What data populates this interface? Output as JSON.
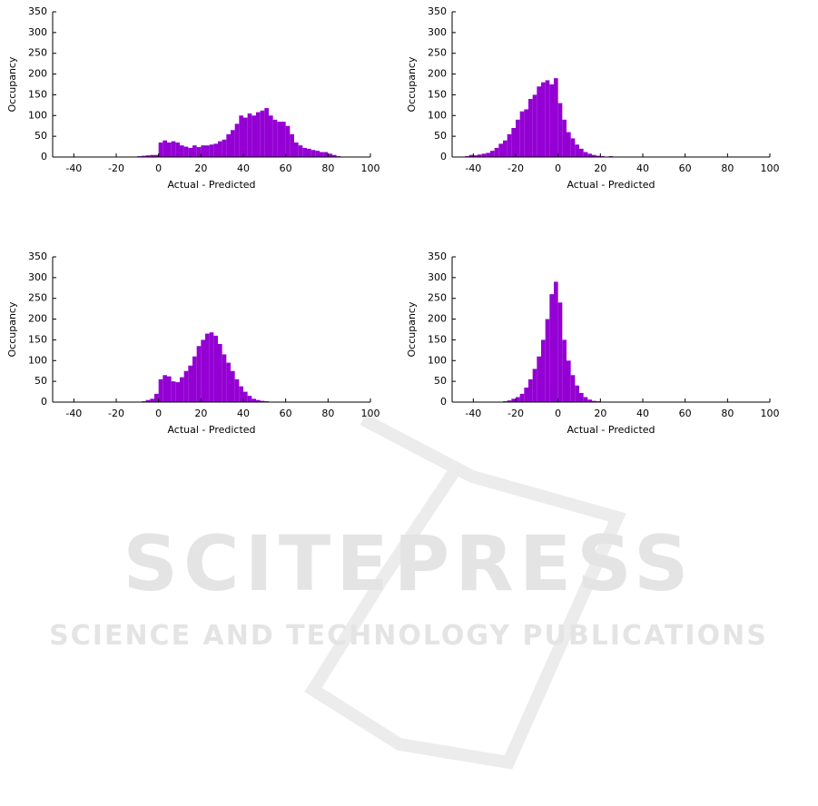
{
  "chart_data": [
    {
      "type": "histogram",
      "xlabel": "Actual - Predicted",
      "ylabel": "Occupancy",
      "color": "#9400d3",
      "xlim": [
        -50,
        100
      ],
      "xticks": [
        -40,
        -20,
        0,
        20,
        40,
        60,
        80,
        100
      ],
      "ylim": [
        0,
        350
      ],
      "yticks": [
        0,
        50,
        100,
        150,
        200,
        250,
        300,
        350
      ],
      "bins": [
        -10,
        -8,
        -6,
        -4,
        -2,
        0,
        2,
        4,
        6,
        8,
        10,
        12,
        14,
        16,
        18,
        20,
        22,
        24,
        26,
        28,
        30,
        32,
        34,
        36,
        38,
        40,
        42,
        44,
        46,
        48,
        50,
        52,
        54,
        56,
        58,
        60,
        62,
        64,
        66,
        68,
        70,
        72,
        74,
        76,
        78,
        80,
        82,
        84,
        86
      ],
      "values": [
        2,
        3,
        4,
        5,
        5,
        35,
        40,
        35,
        38,
        35,
        28,
        25,
        22,
        28,
        24,
        28,
        28,
        30,
        32,
        38,
        42,
        55,
        65,
        80,
        100,
        95,
        105,
        100,
        108,
        112,
        118,
        100,
        90,
        85,
        85,
        75,
        55,
        35,
        28,
        22,
        20,
        17,
        15,
        12,
        12,
        8,
        5,
        2
      ]
    },
    {
      "type": "histogram",
      "xlabel": "Actual - Predicted",
      "ylabel": "Occupancy",
      "color": "#9400d3",
      "xlim": [
        -50,
        100
      ],
      "xticks": [
        -40,
        -20,
        0,
        20,
        40,
        60,
        80,
        100
      ],
      "ylim": [
        0,
        350
      ],
      "yticks": [
        0,
        50,
        100,
        150,
        200,
        250,
        300,
        350
      ],
      "bins": [
        -44,
        -42,
        -40,
        -38,
        -36,
        -34,
        -32,
        -30,
        -28,
        -26,
        -24,
        -22,
        -20,
        -18,
        -16,
        -14,
        -12,
        -10,
        -8,
        -6,
        -4,
        -2,
        0,
        2,
        4,
        6,
        8,
        10,
        12,
        14,
        16,
        18,
        20,
        22,
        24,
        26
      ],
      "values": [
        2,
        5,
        4,
        6,
        8,
        10,
        15,
        22,
        32,
        40,
        55,
        70,
        90,
        110,
        115,
        140,
        150,
        170,
        180,
        185,
        175,
        190,
        130,
        90,
        60,
        45,
        30,
        20,
        12,
        8,
        5,
        3,
        2,
        1,
        2
      ]
    },
    {
      "type": "histogram",
      "xlabel": "Actual - Predicted",
      "ylabel": "Occupancy",
      "color": "#9400d3",
      "xlim": [
        -50,
        100
      ],
      "xticks": [
        -40,
        -20,
        0,
        20,
        40,
        60,
        80,
        100
      ],
      "ylim": [
        0,
        350
      ],
      "yticks": [
        0,
        50,
        100,
        150,
        200,
        250,
        300,
        350
      ],
      "bins": [
        -10,
        -8,
        -6,
        -4,
        -2,
        0,
        2,
        4,
        6,
        8,
        10,
        12,
        14,
        16,
        18,
        20,
        22,
        24,
        26,
        28,
        30,
        32,
        34,
        36,
        38,
        40,
        42,
        44,
        46,
        48,
        50,
        52,
        54,
        56
      ],
      "values": [
        1,
        2,
        5,
        8,
        20,
        55,
        65,
        62,
        50,
        48,
        60,
        75,
        88,
        110,
        135,
        150,
        165,
        168,
        160,
        140,
        115,
        95,
        75,
        55,
        38,
        25,
        15,
        8,
        5,
        3,
        2,
        1,
        1
      ]
    },
    {
      "type": "histogram",
      "xlabel": "Actual - Predicted",
      "ylabel": "Occupancy",
      "color": "#9400d3",
      "xlim": [
        -50,
        100
      ],
      "xticks": [
        -40,
        -20,
        0,
        20,
        40,
        60,
        80,
        100
      ],
      "ylim": [
        0,
        350
      ],
      "yticks": [
        0,
        50,
        100,
        150,
        200,
        250,
        300,
        350
      ],
      "bins": [
        -26,
        -24,
        -22,
        -20,
        -18,
        -16,
        -14,
        -12,
        -10,
        -8,
        -6,
        -4,
        -2,
        0,
        2,
        4,
        6,
        8,
        10,
        12,
        14,
        16,
        18,
        20
      ],
      "values": [
        2,
        4,
        8,
        12,
        20,
        35,
        55,
        80,
        110,
        150,
        200,
        260,
        290,
        240,
        150,
        100,
        65,
        40,
        22,
        12,
        6,
        3,
        2
      ]
    }
  ],
  "watermark": {
    "title": "SCITEPRESS",
    "subtitle": "SCIENCE AND TECHNOLOGY PUBLICATIONS"
  }
}
